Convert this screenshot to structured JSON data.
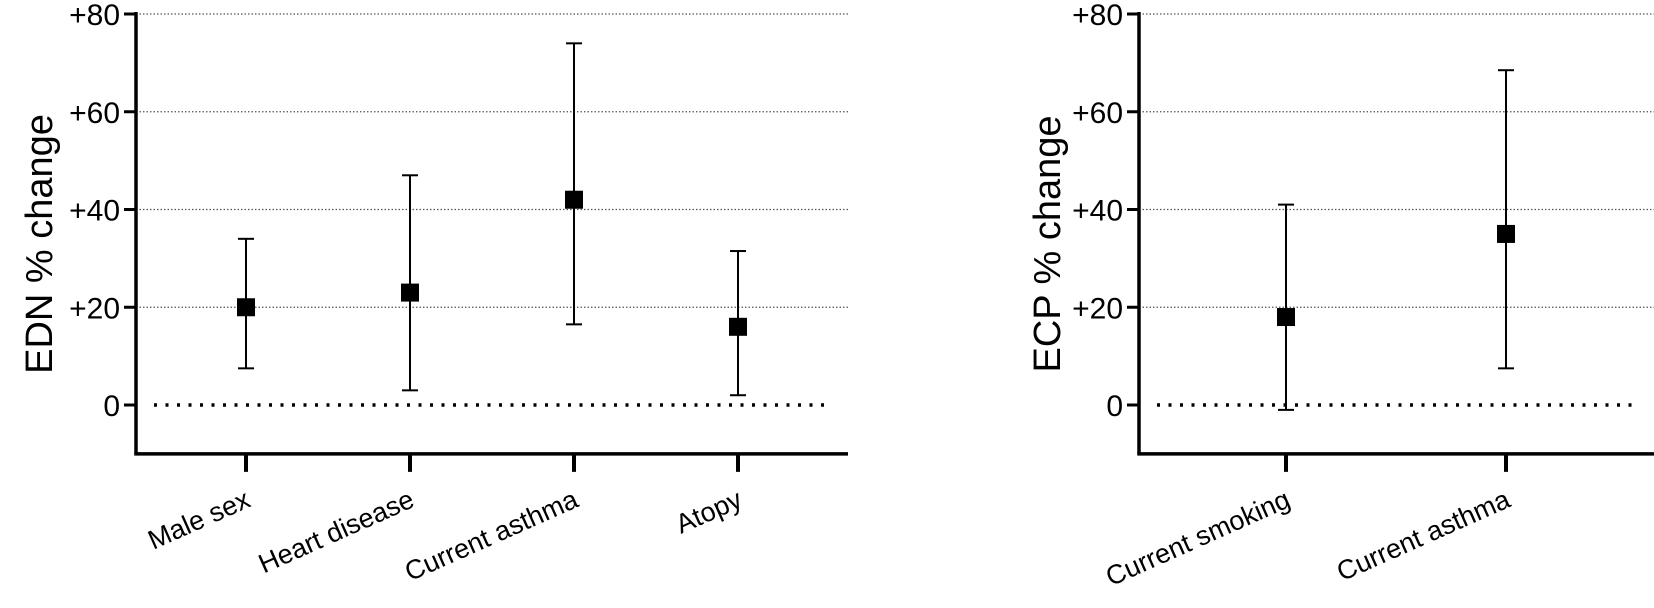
{
  "chart_data": [
    {
      "type": "scatter",
      "ylabel": "EDN  % change",
      "ylim": [
        -10,
        80
      ],
      "yticks": [
        0,
        20,
        40,
        60,
        80
      ],
      "ytick_labels": [
        "0",
        "+20",
        "+40",
        "+60",
        "+80"
      ],
      "grid": "horizontal dotted",
      "reference_line": 0,
      "categories": [
        "Male sex",
        "Heart disease",
        "Current asthma",
        "Atopy"
      ],
      "values": [
        20,
        23,
        42,
        16
      ],
      "ci_lower": [
        7.5,
        3,
        16.5,
        2
      ],
      "ci_upper": [
        34,
        47,
        74,
        31.5
      ]
    },
    {
      "type": "scatter",
      "ylabel": "ECP % change",
      "ylim": [
        -10,
        80
      ],
      "yticks": [
        0,
        20,
        40,
        60,
        80
      ],
      "ytick_labels": [
        "0",
        "+20",
        "+40",
        "+60",
        "+80"
      ],
      "grid": "horizontal dotted",
      "reference_line": 0,
      "categories": [
        "Current smoking",
        "Current asthma"
      ],
      "values": [
        18,
        35
      ],
      "ci_lower": [
        -1,
        7.5
      ],
      "ci_upper": [
        41,
        68.5
      ]
    }
  ]
}
